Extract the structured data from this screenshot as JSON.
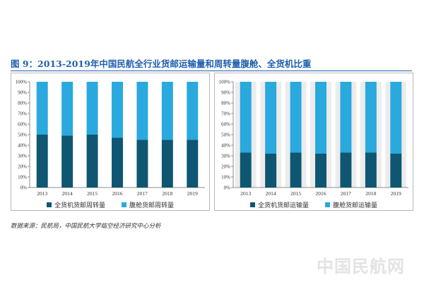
{
  "title": "图 9：2013-2019年中国民航全行业货邮运输量和周转量腹舱、全货机比重",
  "source": "数据来源：民航局，中国民航大学临空经济研究中心分析",
  "watermark": "中国民航网",
  "colors": {
    "dark": "#0e5671",
    "light": "#29a9de",
    "panel_bg_right": "#ececec"
  },
  "chart_data": [
    {
      "type": "bar",
      "stacked": true,
      "categories": [
        "2013",
        "2014",
        "2015",
        "2016",
        "2017",
        "2018",
        "2019"
      ],
      "ylim": [
        0,
        100
      ],
      "yticks": [
        "0%",
        "10%",
        "20%",
        "30%",
        "40%",
        "50%",
        "60%",
        "70%",
        "80%",
        "90%",
        "100%"
      ],
      "grid": false,
      "legend_position": "bottom",
      "series": [
        {
          "name": "全货机货邮周转量",
          "color": "#0e5671",
          "values": [
            50,
            49,
            50,
            47,
            45,
            45,
            45
          ]
        },
        {
          "name": "腹舱货邮周转量",
          "color": "#29a9de",
          "values": [
            50,
            51,
            50,
            53,
            55,
            55,
            55
          ]
        }
      ]
    },
    {
      "type": "bar",
      "stacked": true,
      "categories": [
        "2013",
        "2014",
        "2015",
        "2016",
        "2017",
        "2018",
        "2019"
      ],
      "ylim": [
        0,
        100
      ],
      "yticks": [
        "0%",
        "10%",
        "20%",
        "30%",
        "40%",
        "50%",
        "60%",
        "70%",
        "80%",
        "90%",
        "100%"
      ],
      "grid": false,
      "legend_position": "bottom",
      "series": [
        {
          "name": "全货机货邮运输量",
          "color": "#0e5671",
          "values": [
            33,
            32,
            33,
            32,
            33,
            33,
            32
          ]
        },
        {
          "name": "腹舱货邮运输量",
          "color": "#29a9de",
          "values": [
            67,
            68,
            67,
            68,
            67,
            67,
            68
          ]
        }
      ]
    }
  ]
}
